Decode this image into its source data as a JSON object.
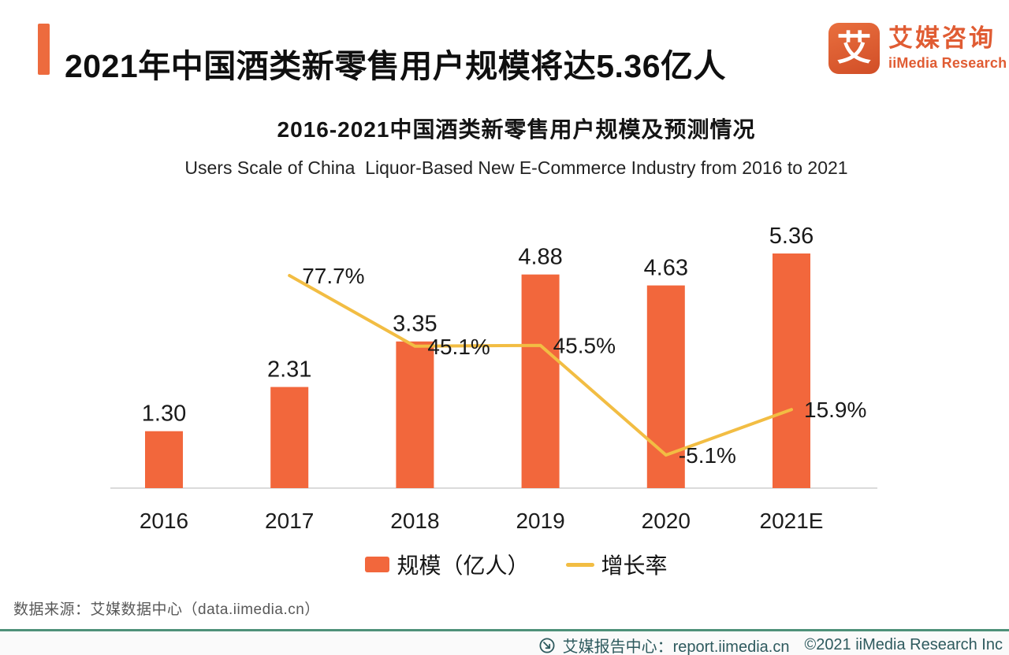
{
  "header": {
    "title": "2021年中国酒类新零售用户规模将达5.36亿人"
  },
  "logo": {
    "glyph": "艾",
    "name_cn": "艾媒咨询",
    "name_en": "iiMedia Research"
  },
  "chart_data": {
    "type": "bar",
    "title": "2016-2021中国酒类新零售用户规模及预测情况",
    "subtitle": "Users Scale of China  Liquor-Based New E-Commerce Industry from 2016 to 2021",
    "categories": [
      "2016",
      "2017",
      "2018",
      "2019",
      "2020",
      "2021E"
    ],
    "series": [
      {
        "name": "规模（亿人）",
        "type": "bar",
        "color": "#f2673c",
        "values": [
          1.3,
          2.31,
          3.35,
          4.88,
          4.63,
          5.36
        ],
        "labels": [
          "1.30",
          "2.31",
          "3.35",
          "4.88",
          "4.63",
          "5.36"
        ]
      },
      {
        "name": "增长率",
        "type": "line",
        "color": "#f2bd43",
        "values": [
          null,
          77.7,
          45.1,
          45.5,
          -5.1,
          15.9
        ],
        "labels": [
          null,
          "77.7%",
          "45.1%",
          "45.5%",
          "-5.1%",
          "15.9%"
        ]
      }
    ],
    "xlabel": "",
    "ylabel": "",
    "bar_ylim": [
      0,
      6
    ],
    "line_ylim": [
      -20,
      100
    ],
    "grid": false,
    "legend_position": "bottom"
  },
  "footer": {
    "source": "数据来源：艾媒数据中心（data.iimedia.cn）",
    "report_center": "艾媒报告中心：report.iimedia.cn",
    "copyright": "©2021  iiMedia Research Inc"
  }
}
